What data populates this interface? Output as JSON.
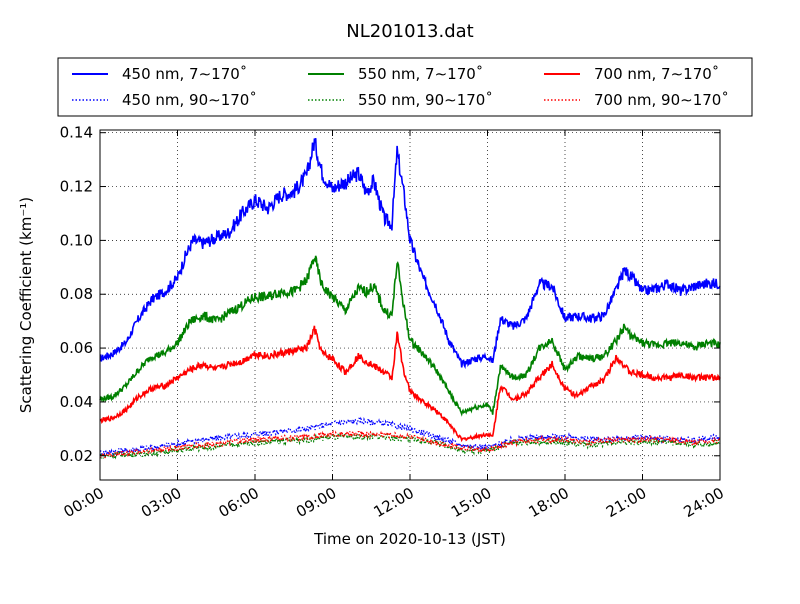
{
  "chart_data": {
    "type": "line",
    "title": "NL201013.dat",
    "xlabel": "Time on 2020-10-13 (JST)",
    "ylabel": "Scattering Coefficient (km⁻¹)",
    "xlim_hours": [
      0,
      24
    ],
    "ylim": [
      0.011,
      0.141
    ],
    "x_ticks": [
      "00:00",
      "03:00",
      "06:00",
      "09:00",
      "12:00",
      "15:00",
      "18:00",
      "21:00",
      "24:00"
    ],
    "y_ticks": [
      "0.02",
      "0.04",
      "0.06",
      "0.08",
      "0.10",
      "0.12",
      "0.14"
    ],
    "y_tick_values": [
      0.02,
      0.04,
      0.06,
      0.08,
      0.1,
      0.12,
      0.14
    ],
    "grid": true,
    "legend_placement": "top, outside plot",
    "series": [
      {
        "name": "450 nm, 7∼170˚",
        "color": "#0000ff",
        "style": "solid",
        "x": [
          0,
          0.5,
          1,
          1.5,
          2,
          2.5,
          3,
          3.3,
          3.6,
          4,
          4.5,
          5,
          5.5,
          6,
          6.5,
          7,
          7.5,
          8,
          8.3,
          8.6,
          9,
          9.3,
          9.6,
          10,
          10.3,
          10.6,
          11,
          11.3,
          11.5,
          11.8,
          12,
          12.5,
          13,
          13.5,
          14,
          14.5,
          15,
          15.2,
          15.5,
          16,
          16.5,
          17,
          17.5,
          18,
          18.5,
          19,
          19.5,
          20,
          20.3,
          20.6,
          21,
          21.5,
          22,
          22.5,
          23,
          23.5,
          24
        ],
        "y": [
          0.056,
          0.058,
          0.062,
          0.071,
          0.078,
          0.081,
          0.086,
          0.094,
          0.1,
          0.099,
          0.101,
          0.103,
          0.11,
          0.115,
          0.112,
          0.117,
          0.118,
          0.124,
          0.137,
          0.125,
          0.119,
          0.121,
          0.122,
          0.125,
          0.118,
          0.122,
          0.108,
          0.106,
          0.133,
          0.115,
          0.1,
          0.086,
          0.076,
          0.063,
          0.054,
          0.056,
          0.057,
          0.055,
          0.071,
          0.068,
          0.071,
          0.084,
          0.083,
          0.071,
          0.072,
          0.071,
          0.072,
          0.082,
          0.089,
          0.086,
          0.081,
          0.082,
          0.084,
          0.081,
          0.083,
          0.084,
          0.084
        ]
      },
      {
        "name": "450 nm, 90∼170˚",
        "color": "#0000ff",
        "style": "dotted",
        "x": [
          0,
          2,
          4,
          6,
          8,
          9,
          10,
          11,
          12,
          13,
          14,
          15,
          16,
          17,
          18,
          19,
          20,
          21,
          22,
          23,
          24
        ],
        "y": [
          0.021,
          0.023,
          0.026,
          0.028,
          0.03,
          0.032,
          0.033,
          0.032,
          0.03,
          0.027,
          0.024,
          0.023,
          0.026,
          0.027,
          0.027,
          0.026,
          0.026,
          0.027,
          0.026,
          0.026,
          0.027
        ]
      },
      {
        "name": "550 nm, 7∼170˚",
        "color": "#008000",
        "style": "solid",
        "x": [
          0,
          0.5,
          1,
          1.5,
          2,
          2.5,
          3,
          3.5,
          4,
          4.5,
          5,
          5.5,
          6,
          6.5,
          7,
          7.5,
          8,
          8.3,
          8.6,
          9,
          9.5,
          10,
          10.3,
          10.6,
          11,
          11.3,
          11.5,
          11.8,
          12,
          12.5,
          13,
          13.5,
          14,
          14.5,
          15,
          15.2,
          15.5,
          16,
          16.5,
          17,
          17.5,
          18,
          18.5,
          19,
          19.5,
          20,
          20.3,
          20.6,
          21,
          21.5,
          22,
          22.5,
          23,
          23.5,
          24
        ],
        "y": [
          0.041,
          0.042,
          0.046,
          0.052,
          0.057,
          0.058,
          0.062,
          0.07,
          0.072,
          0.07,
          0.073,
          0.076,
          0.079,
          0.079,
          0.081,
          0.081,
          0.085,
          0.094,
          0.083,
          0.079,
          0.074,
          0.082,
          0.081,
          0.083,
          0.074,
          0.072,
          0.092,
          0.073,
          0.063,
          0.058,
          0.052,
          0.044,
          0.036,
          0.038,
          0.039,
          0.036,
          0.053,
          0.049,
          0.05,
          0.06,
          0.063,
          0.052,
          0.057,
          0.056,
          0.057,
          0.063,
          0.068,
          0.064,
          0.062,
          0.061,
          0.062,
          0.062,
          0.06,
          0.062,
          0.061
        ]
      },
      {
        "name": "550 nm, 90∼170˚",
        "color": "#008000",
        "style": "dotted",
        "x": [
          0,
          2,
          4,
          6,
          8,
          9,
          10,
          11,
          12,
          13,
          14,
          15,
          16,
          17,
          18,
          19,
          20,
          21,
          22,
          23,
          24
        ],
        "y": [
          0.02,
          0.021,
          0.023,
          0.025,
          0.026,
          0.027,
          0.027,
          0.027,
          0.026,
          0.025,
          0.022,
          0.022,
          0.025,
          0.025,
          0.025,
          0.024,
          0.025,
          0.025,
          0.025,
          0.024,
          0.025
        ]
      },
      {
        "name": "700 nm, 7∼170˚",
        "color": "#ff0000",
        "style": "solid",
        "x": [
          0,
          0.5,
          1,
          1.5,
          2,
          2.5,
          3,
          3.5,
          4,
          4.5,
          5,
          5.5,
          6,
          6.5,
          7,
          7.5,
          8,
          8.3,
          8.6,
          9,
          9.5,
          10,
          10.5,
          11,
          11.3,
          11.5,
          11.8,
          12,
          12.5,
          13,
          13.5,
          14,
          14.5,
          15,
          15.2,
          15.5,
          16,
          16.5,
          17,
          17.5,
          18,
          18.5,
          19,
          19.5,
          20,
          20.5,
          21,
          21.5,
          22,
          22.5,
          23,
          23.5,
          24
        ],
        "y": [
          0.033,
          0.034,
          0.037,
          0.042,
          0.045,
          0.046,
          0.049,
          0.052,
          0.054,
          0.052,
          0.054,
          0.055,
          0.058,
          0.057,
          0.058,
          0.059,
          0.06,
          0.067,
          0.058,
          0.056,
          0.051,
          0.057,
          0.054,
          0.051,
          0.049,
          0.065,
          0.05,
          0.044,
          0.04,
          0.037,
          0.032,
          0.026,
          0.027,
          0.028,
          0.027,
          0.046,
          0.041,
          0.043,
          0.049,
          0.054,
          0.045,
          0.042,
          0.046,
          0.048,
          0.057,
          0.051,
          0.05,
          0.049,
          0.049,
          0.05,
          0.049,
          0.049,
          0.049
        ]
      },
      {
        "name": "700 nm, 90∼170˚",
        "color": "#ff0000",
        "style": "dotted",
        "x": [
          0,
          2,
          4,
          6,
          8,
          9,
          10,
          11,
          12,
          13,
          14,
          15,
          16,
          17,
          18,
          19,
          20,
          21,
          22,
          23,
          24
        ],
        "y": [
          0.02,
          0.022,
          0.024,
          0.026,
          0.027,
          0.028,
          0.028,
          0.028,
          0.027,
          0.025,
          0.023,
          0.022,
          0.025,
          0.026,
          0.026,
          0.025,
          0.026,
          0.026,
          0.026,
          0.025,
          0.026
        ]
      }
    ]
  }
}
